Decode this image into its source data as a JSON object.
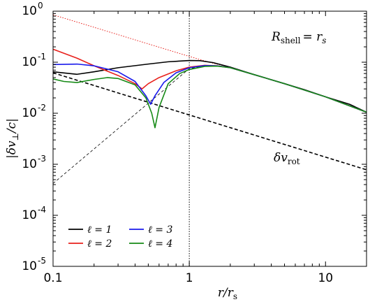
{
  "chart_data": {
    "type": "line",
    "xscale": "log",
    "yscale": "log",
    "xlim": [
      0.1,
      20
    ],
    "ylim": [
      1e-05,
      1
    ],
    "xlabel": "r/r",
    "xlabel_sub": "s",
    "ylabel": "|δv",
    "ylabel_sub": "⊥",
    "ylabel_tail": "/c|",
    "x_ticks": [
      {
        "value": 0.1,
        "label": "0.1"
      },
      {
        "value": 1,
        "label": "1"
      },
      {
        "value": 10,
        "label": "10"
      }
    ],
    "y_ticks": [
      {
        "value": 1,
        "base": "10",
        "exp": "0"
      },
      {
        "value": 0.1,
        "base": "10",
        "exp": "-1"
      },
      {
        "value": 0.01,
        "base": "10",
        "exp": "-2"
      },
      {
        "value": 0.001,
        "base": "10",
        "exp": "-3"
      },
      {
        "value": 0.0001,
        "base": "10",
        "exp": "-4"
      },
      {
        "value": 1e-05,
        "base": "10",
        "exp": "-5"
      }
    ],
    "annotation_shell": {
      "lhs": "R",
      "sub": "shell",
      "rhs": "= r",
      "rhs_sub": "s"
    },
    "annotation_rot": {
      "text": "δv",
      "sub": "rot"
    },
    "legend": {
      "placement": "lower-left",
      "symbol": "ℓ"
    },
    "series": [
      {
        "name": "1",
        "color": "#000000",
        "style": "solid",
        "points": [
          [
            0.1,
            0.065
          ],
          [
            0.15,
            0.058
          ],
          [
            0.2,
            0.065
          ],
          [
            0.3,
            0.078
          ],
          [
            0.5,
            0.092
          ],
          [
            0.7,
            0.102
          ],
          [
            1.0,
            0.108
          ],
          [
            1.2,
            0.107
          ],
          [
            1.5,
            0.098
          ],
          [
            2.0,
            0.08
          ],
          [
            3.0,
            0.057
          ],
          [
            5.0,
            0.038
          ],
          [
            7.0,
            0.029
          ],
          [
            10.0,
            0.021
          ],
          [
            15.0,
            0.015
          ],
          [
            20.0,
            0.0105
          ]
        ]
      },
      {
        "name": "2",
        "color": "#e8211c",
        "style": "solid",
        "points": [
          [
            0.1,
            0.18
          ],
          [
            0.15,
            0.12
          ],
          [
            0.2,
            0.085
          ],
          [
            0.3,
            0.055
          ],
          [
            0.4,
            0.038
          ],
          [
            0.45,
            0.03
          ],
          [
            0.5,
            0.038
          ],
          [
            0.6,
            0.05
          ],
          [
            0.8,
            0.068
          ],
          [
            1.0,
            0.08
          ],
          [
            1.3,
            0.087
          ],
          [
            1.6,
            0.085
          ],
          [
            2.0,
            0.078
          ],
          [
            3.0,
            0.057
          ],
          [
            5.0,
            0.038
          ],
          [
            10.0,
            0.021
          ],
          [
            20.0,
            0.0105
          ]
        ]
      },
      {
        "name": "3",
        "color": "#1a1aeb",
        "style": "solid",
        "points": [
          [
            0.1,
            0.09
          ],
          [
            0.15,
            0.092
          ],
          [
            0.2,
            0.085
          ],
          [
            0.3,
            0.065
          ],
          [
            0.4,
            0.042
          ],
          [
            0.48,
            0.022
          ],
          [
            0.52,
            0.015
          ],
          [
            0.56,
            0.022
          ],
          [
            0.65,
            0.04
          ],
          [
            0.8,
            0.062
          ],
          [
            1.0,
            0.078
          ],
          [
            1.3,
            0.086
          ],
          [
            1.6,
            0.085
          ],
          [
            2.0,
            0.078
          ],
          [
            3.0,
            0.057
          ],
          [
            5.0,
            0.038
          ],
          [
            10.0,
            0.021
          ],
          [
            20.0,
            0.0105
          ]
        ]
      },
      {
        "name": "4",
        "color": "#168a16",
        "style": "solid",
        "points": [
          [
            0.1,
            0.047
          ],
          [
            0.12,
            0.042
          ],
          [
            0.15,
            0.04
          ],
          [
            0.2,
            0.046
          ],
          [
            0.25,
            0.05
          ],
          [
            0.3,
            0.048
          ],
          [
            0.4,
            0.036
          ],
          [
            0.48,
            0.02
          ],
          [
            0.53,
            0.01
          ],
          [
            0.56,
            0.0052
          ],
          [
            0.6,
            0.013
          ],
          [
            0.7,
            0.038
          ],
          [
            0.85,
            0.06
          ],
          [
            1.0,
            0.072
          ],
          [
            1.3,
            0.083
          ],
          [
            1.6,
            0.084
          ],
          [
            2.0,
            0.078
          ],
          [
            3.0,
            0.057
          ],
          [
            5.0,
            0.038
          ],
          [
            10.0,
            0.021
          ],
          [
            20.0,
            0.0105
          ]
        ]
      }
    ],
    "reference_lines": [
      {
        "role": "delta-v-rot",
        "color": "#000000",
        "style": "dashed",
        "points": [
          [
            0.1,
            0.062
          ],
          [
            20.0,
            0.00078
          ]
        ]
      },
      {
        "role": "lower-envelope",
        "color": "#000000",
        "style": "thin-dashed",
        "points": [
          [
            0.1,
            0.00042
          ],
          [
            1.0,
            0.075
          ],
          [
            1.3,
            0.085
          ],
          [
            1.6,
            0.084
          ],
          [
            2.0,
            0.078
          ],
          [
            3.0,
            0.057
          ],
          [
            5.0,
            0.038
          ],
          [
            10.0,
            0.021
          ],
          [
            20.0,
            0.0105
          ]
        ]
      },
      {
        "role": "upper-envelope",
        "color": "#e8211c",
        "style": "dotted",
        "points": [
          [
            0.1,
            0.85
          ],
          [
            1.0,
            0.13
          ],
          [
            1.5,
            0.095
          ],
          [
            2.0,
            0.08
          ]
        ]
      },
      {
        "role": "r-equals-rs",
        "color": "#000000",
        "style": "dotted",
        "points": [
          [
            1.0,
            1e-05
          ],
          [
            1.0,
            1.0
          ]
        ]
      }
    ]
  }
}
